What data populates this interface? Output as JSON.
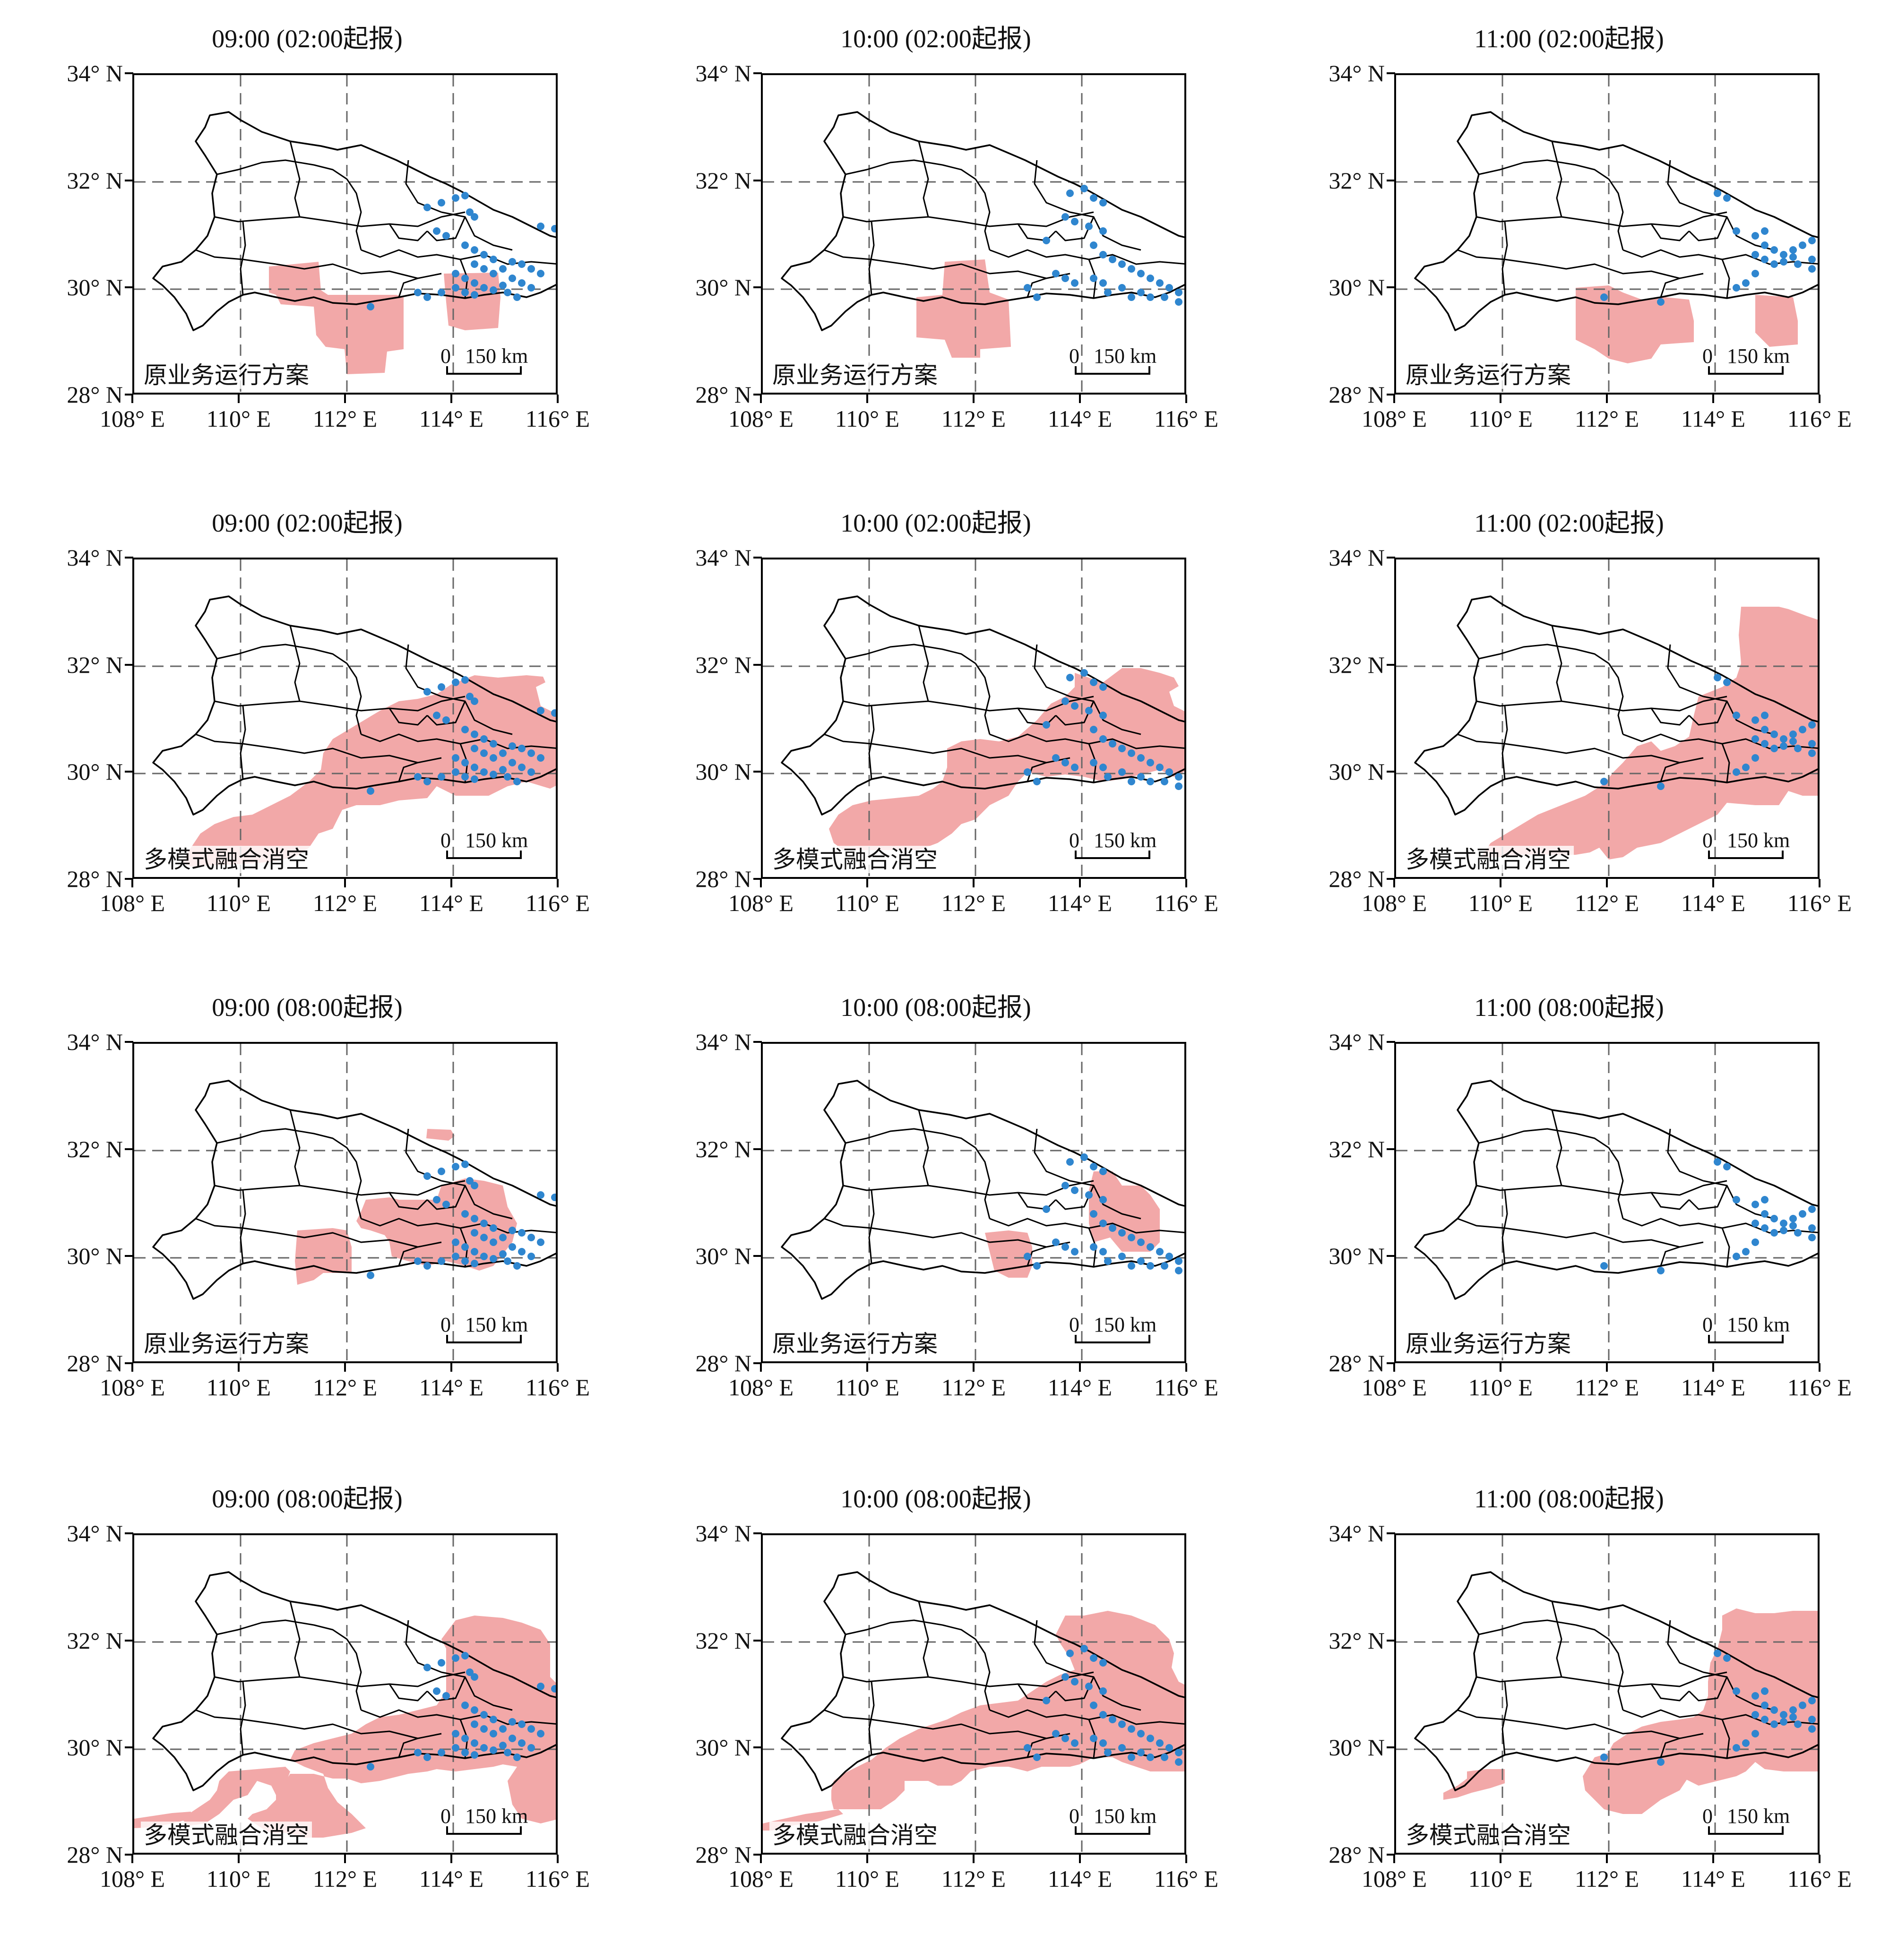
{
  "figure": {
    "lat_labels": [
      "34° N",
      "32° N",
      "30° N",
      "28° N"
    ],
    "lon_labels": [
      "108° E",
      "110° E",
      "112° E",
      "114° E",
      "116° E"
    ],
    "scale_zero": "0",
    "scale_distance": "150 km",
    "colors": {
      "forecast_fill": "#f2a8a8",
      "observed_points": "#2f86cf",
      "boundary": "#000000",
      "grid": "#666666"
    },
    "panels": [
      {
        "title": "09:00 (02:00起报)",
        "scheme": "原业务运行方案",
        "shape": "op02_09",
        "dots": "d09"
      },
      {
        "title": "10:00 (02:00起报)",
        "scheme": "原业务运行方案",
        "shape": "op02_10",
        "dots": "d10"
      },
      {
        "title": "11:00 (02:00起报)",
        "scheme": "原业务运行方案",
        "shape": "op02_11",
        "dots": "d11"
      },
      {
        "title": "09:00 (02:00起报)",
        "scheme": "多模式融合消空",
        "shape": "mm02_09",
        "dots": "d09"
      },
      {
        "title": "10:00 (02:00起报)",
        "scheme": "多模式融合消空",
        "shape": "mm02_10",
        "dots": "d10"
      },
      {
        "title": "11:00 (02:00起报)",
        "scheme": "多模式融合消空",
        "shape": "mm02_11",
        "dots": "d11"
      },
      {
        "title": "09:00 (08:00起报)",
        "scheme": "原业务运行方案",
        "shape": "op08_09",
        "dots": "d09"
      },
      {
        "title": "10:00 (08:00起报)",
        "scheme": "原业务运行方案",
        "shape": "op08_10",
        "dots": "d10"
      },
      {
        "title": "11:00 (08:00起报)",
        "scheme": "原业务运行方案",
        "shape": "none",
        "dots": "d11"
      },
      {
        "title": "09:00 (08:00起报)",
        "scheme": "多模式融合消空",
        "shape": "mm08_09",
        "dots": "d09"
      },
      {
        "title": "10:00 (08:00起报)",
        "scheme": "多模式融合消空",
        "shape": "mm08_10",
        "dots": "d10"
      },
      {
        "title": "11:00 (08:00起报)",
        "scheme": "多模式融合消空",
        "shape": "mm08_11",
        "dots": "d11"
      }
    ]
  }
}
